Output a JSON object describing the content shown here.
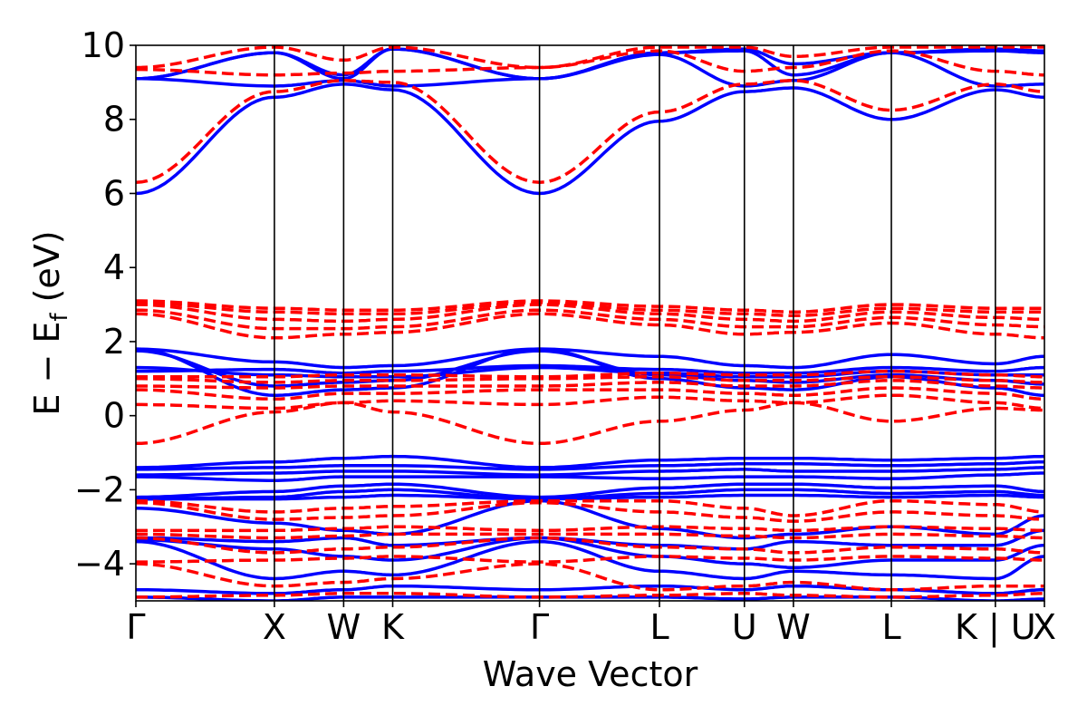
{
  "chart_data": {
    "type": "line",
    "title": "",
    "xlabel": "Wave Vector",
    "ylabel": "E − E_f (eV)",
    "ylabel_parts": {
      "main": "E − E",
      "sub": "f",
      "unit": " (eV)"
    },
    "ylim": [
      -5,
      10
    ],
    "yticks": [
      -4,
      -2,
      0,
      2,
      4,
      6,
      8,
      10
    ],
    "ytick_labels": [
      "−4",
      "−2",
      "0",
      "2",
      "4",
      "6",
      "8",
      "10"
    ],
    "grid": false,
    "colors": {
      "spin_up": "#0000ff",
      "spin_down": "#ff0000"
    },
    "kpoints": [
      {
        "label": "Γ",
        "pos": 0
      },
      {
        "label": "X",
        "pos": 1.0
      },
      {
        "label": "W",
        "pos": 1.5
      },
      {
        "label": "K",
        "pos": 1.854
      },
      {
        "label": "Γ",
        "pos": 2.914
      },
      {
        "label": "L",
        "pos": 3.78
      },
      {
        "label": "U",
        "pos": 4.393
      },
      {
        "label": "W",
        "pos": 4.747
      },
      {
        "label": "L",
        "pos": 5.454
      },
      {
        "label": "K | U",
        "pos": 6.205
      },
      {
        "label": "X",
        "pos": 6.559
      }
    ],
    "series": [
      {
        "name": "band-up-cb1",
        "style": "solid",
        "color": "#0000ff",
        "values": [
          6.0,
          8.6,
          8.95,
          8.8,
          6.0,
          7.95,
          8.75,
          8.85,
          8.0,
          8.8,
          8.6
        ]
      },
      {
        "name": "band-up-cb2",
        "style": "solid",
        "color": "#0000ff",
        "values": [
          9.1,
          8.9,
          9.05,
          8.9,
          9.1,
          9.75,
          8.9,
          9.05,
          9.8,
          8.9,
          8.95
        ]
      },
      {
        "name": "band-up-cb3",
        "style": "solid",
        "color": "#0000ff",
        "values": [
          9.1,
          9.8,
          9.1,
          9.9,
          9.1,
          9.8,
          9.85,
          9.2,
          9.8,
          9.85,
          9.8
        ]
      },
      {
        "name": "band-up-cb4",
        "style": "solid",
        "color": "#0000ff",
        "values": [
          9.1,
          9.8,
          9.2,
          9.9,
          9.1,
          9.8,
          9.9,
          9.5,
          9.8,
          9.9,
          9.85
        ]
      },
      {
        "name": "band-dn-cb1",
        "style": "dashed",
        "color": "#ff0000",
        "values": [
          6.3,
          8.75,
          9.05,
          9.0,
          6.3,
          8.2,
          8.95,
          9.05,
          8.25,
          8.95,
          8.75
        ]
      },
      {
        "name": "band-dn-cb2",
        "style": "dashed",
        "color": "#ff0000",
        "values": [
          9.35,
          9.2,
          9.25,
          9.3,
          9.4,
          9.85,
          9.3,
          9.4,
          9.85,
          9.3,
          9.2
        ]
      },
      {
        "name": "band-dn-cb3",
        "style": "dashed",
        "color": "#ff0000",
        "values": [
          9.4,
          9.95,
          9.6,
          9.95,
          9.4,
          9.95,
          9.95,
          9.7,
          9.95,
          9.95,
          9.95
        ]
      },
      {
        "name": "band-dn-d1",
        "style": "dashed",
        "color": "#ff0000",
        "values": [
          2.75,
          2.1,
          2.2,
          2.25,
          2.75,
          2.45,
          2.2,
          2.25,
          2.5,
          2.2,
          2.1
        ]
      },
      {
        "name": "band-dn-d2",
        "style": "dashed",
        "color": "#ff0000",
        "values": [
          2.85,
          2.35,
          2.35,
          2.4,
          2.85,
          2.6,
          2.4,
          2.4,
          2.65,
          2.45,
          2.4
        ]
      },
      {
        "name": "band-dn-d3",
        "style": "dashed",
        "color": "#ff0000",
        "values": [
          3.0,
          2.6,
          2.55,
          2.6,
          3.0,
          2.75,
          2.6,
          2.55,
          2.8,
          2.65,
          2.6
        ]
      },
      {
        "name": "band-dn-d4",
        "style": "dashed",
        "color": "#ff0000",
        "values": [
          3.05,
          2.8,
          2.75,
          2.75,
          3.05,
          2.85,
          2.75,
          2.7,
          2.9,
          2.8,
          2.8
        ]
      },
      {
        "name": "band-dn-d5",
        "style": "dashed",
        "color": "#ff0000",
        "values": [
          3.1,
          2.9,
          2.85,
          2.85,
          3.1,
          2.95,
          2.85,
          2.8,
          3.0,
          2.9,
          2.9
        ]
      },
      {
        "name": "band-up-d1",
        "style": "solid",
        "color": "#0000ff",
        "values": [
          1.8,
          0.55,
          0.7,
          0.75,
          1.8,
          1.0,
          0.75,
          0.7,
          1.05,
          0.75,
          0.55
        ]
      },
      {
        "name": "band-up-d2",
        "style": "solid",
        "color": "#0000ff",
        "values": [
          1.75,
          0.8,
          0.9,
          0.95,
          1.75,
          1.1,
          0.95,
          0.9,
          1.1,
          0.95,
          0.85
        ]
      },
      {
        "name": "band-up-d3",
        "style": "solid",
        "color": "#0000ff",
        "values": [
          1.3,
          1.1,
          1.05,
          1.05,
          1.3,
          1.15,
          1.05,
          1.05,
          1.2,
          1.1,
          1.1
        ]
      },
      {
        "name": "band-up-d4",
        "style": "solid",
        "color": "#0000ff",
        "values": [
          1.2,
          1.25,
          1.15,
          1.2,
          1.35,
          1.25,
          1.15,
          1.15,
          1.3,
          1.2,
          1.3
        ]
      },
      {
        "name": "band-up-d5",
        "style": "solid",
        "color": "#0000ff",
        "values": [
          1.8,
          1.45,
          1.3,
          1.35,
          1.8,
          1.6,
          1.35,
          1.3,
          1.65,
          1.4,
          1.6
        ]
      },
      {
        "name": "band-dn-e1",
        "style": "dashed",
        "color": "#ff0000",
        "values": [
          0.3,
          0.2,
          0.35,
          0.4,
          0.3,
          0.5,
          0.4,
          0.35,
          0.55,
          0.35,
          0.2
        ]
      },
      {
        "name": "band-dn-e2",
        "style": "dashed",
        "color": "#ff0000",
        "values": [
          0.7,
          0.45,
          0.6,
          0.6,
          0.7,
          0.7,
          0.6,
          0.55,
          0.75,
          0.6,
          0.45
        ]
      },
      {
        "name": "band-dn-e3",
        "style": "dashed",
        "color": "#ff0000",
        "values": [
          0.8,
          0.75,
          0.8,
          0.8,
          0.8,
          0.9,
          0.8,
          0.8,
          0.95,
          0.8,
          0.75
        ]
      },
      {
        "name": "band-dn-e4",
        "style": "dashed",
        "color": "#ff0000",
        "values": [
          1.0,
          0.9,
          0.95,
          0.95,
          1.0,
          1.05,
          0.95,
          0.95,
          1.05,
          0.95,
          0.9
        ]
      },
      {
        "name": "band-dn-e5",
        "style": "dashed",
        "color": "#ff0000",
        "values": [
          1.05,
          1.05,
          1.1,
          1.1,
          1.05,
          1.15,
          1.1,
          1.1,
          1.2,
          1.1,
          1.05
        ]
      },
      {
        "name": "band-dn-e6",
        "style": "dashed",
        "color": "#ff0000",
        "values": [
          -0.75,
          0.1,
          0.35,
          0.1,
          -0.75,
          -0.15,
          0.15,
          0.35,
          -0.15,
          0.2,
          0.15
        ]
      },
      {
        "name": "band-up-v1",
        "style": "solid",
        "color": "#0000ff",
        "values": [
          -1.4,
          -1.25,
          -1.15,
          -1.1,
          -1.4,
          -1.2,
          -1.15,
          -1.15,
          -1.2,
          -1.15,
          -1.1
        ]
      },
      {
        "name": "band-up-v2",
        "style": "solid",
        "color": "#0000ff",
        "values": [
          -1.45,
          -1.4,
          -1.35,
          -1.35,
          -1.45,
          -1.35,
          -1.3,
          -1.3,
          -1.35,
          -1.3,
          -1.25
        ]
      },
      {
        "name": "band-up-v3",
        "style": "solid",
        "color": "#0000ff",
        "values": [
          -1.6,
          -1.55,
          -1.5,
          -1.5,
          -1.6,
          -1.5,
          -1.45,
          -1.5,
          -1.5,
          -1.45,
          -1.4
        ]
      },
      {
        "name": "band-up-v4",
        "style": "solid",
        "color": "#0000ff",
        "values": [
          -1.65,
          -1.75,
          -1.65,
          -1.65,
          -1.65,
          -1.7,
          -1.65,
          -1.65,
          -1.7,
          -1.6,
          -1.55
        ]
      },
      {
        "name": "band-up-v5",
        "style": "solid",
        "color": "#0000ff",
        "values": [
          -2.2,
          -2.05,
          -1.9,
          -1.85,
          -2.2,
          -1.95,
          -1.85,
          -1.85,
          -1.95,
          -1.9,
          -2.05
        ]
      },
      {
        "name": "band-up-v6",
        "style": "solid",
        "color": "#0000ff",
        "values": [
          -2.25,
          -2.2,
          -2.05,
          -2.0,
          -2.25,
          -2.1,
          -2.0,
          -2.0,
          -2.1,
          -2.05,
          -2.15
        ]
      },
      {
        "name": "band-up-v7",
        "style": "solid",
        "color": "#0000ff",
        "values": [
          -2.25,
          -2.25,
          -2.2,
          -2.15,
          -2.25,
          -2.2,
          -2.15,
          -2.15,
          -2.2,
          -2.15,
          -2.2
        ]
      },
      {
        "name": "band-up-v8",
        "style": "solid",
        "color": "#0000ff",
        "values": [
          -2.5,
          -2.9,
          -3.1,
          -3.2,
          -2.3,
          -3.05,
          -3.3,
          -3.2,
          -3.0,
          -3.2,
          -2.7
        ]
      },
      {
        "name": "band-up-v9",
        "style": "solid",
        "color": "#0000ff",
        "values": [
          -3.3,
          -3.4,
          -3.3,
          -3.5,
          -3.3,
          -3.5,
          -3.6,
          -3.4,
          -3.5,
          -3.5,
          -3.1
        ]
      },
      {
        "name": "band-up-v10",
        "style": "solid",
        "color": "#0000ff",
        "values": [
          -3.35,
          -3.6,
          -3.8,
          -3.9,
          -3.3,
          -3.8,
          -4.0,
          -4.1,
          -3.9,
          -3.9,
          -3.5
        ]
      },
      {
        "name": "band-up-v11",
        "style": "solid",
        "color": "#0000ff",
        "values": [
          -3.4,
          -4.4,
          -4.2,
          -4.3,
          -3.4,
          -4.2,
          -4.4,
          -4.2,
          -4.3,
          -4.4,
          -3.8
        ]
      },
      {
        "name": "band-up-v12",
        "style": "solid",
        "color": "#0000ff",
        "values": [
          -4.7,
          -4.8,
          -4.7,
          -4.6,
          -4.7,
          -4.6,
          -4.7,
          -4.6,
          -4.7,
          -4.8,
          -4.7
        ]
      },
      {
        "name": "band-up-v13",
        "style": "solid",
        "color": "#0000ff",
        "values": [
          -4.9,
          -5.0,
          -4.9,
          -4.9,
          -4.9,
          -4.9,
          -4.95,
          -4.9,
          -4.9,
          -5.0,
          -4.95
        ]
      },
      {
        "name": "band-dn-v1",
        "style": "dashed",
        "color": "#ff0000",
        "values": [
          -2.3,
          -2.6,
          -2.5,
          -2.45,
          -2.3,
          -2.3,
          -2.5,
          -2.7,
          -2.3,
          -2.4,
          -2.6
        ]
      },
      {
        "name": "band-dn-v2",
        "style": "dashed",
        "color": "#ff0000",
        "values": [
          -2.35,
          -2.8,
          -2.75,
          -2.7,
          -2.35,
          -2.6,
          -2.75,
          -2.85,
          -2.6,
          -2.7,
          -2.8
        ]
      },
      {
        "name": "band-dn-v3",
        "style": "dashed",
        "color": "#ff0000",
        "values": [
          -3.1,
          -3.1,
          -3.05,
          -3.0,
          -3.1,
          -3.0,
          -3.05,
          -3.1,
          -3.0,
          -3.05,
          -3.1
        ]
      },
      {
        "name": "band-dn-v4",
        "style": "dashed",
        "color": "#ff0000",
        "values": [
          -3.2,
          -3.3,
          -3.25,
          -3.2,
          -3.2,
          -3.2,
          -3.25,
          -3.3,
          -3.2,
          -3.25,
          -3.3
        ]
      },
      {
        "name": "band-dn-v5",
        "style": "dashed",
        "color": "#ff0000",
        "values": [
          -3.3,
          -3.7,
          -3.6,
          -3.55,
          -3.3,
          -3.55,
          -3.6,
          -3.7,
          -3.55,
          -3.6,
          -3.7
        ]
      },
      {
        "name": "band-dn-v6",
        "style": "dashed",
        "color": "#ff0000",
        "values": [
          -3.95,
          -3.9,
          -3.85,
          -3.8,
          -3.95,
          -3.8,
          -3.85,
          -3.9,
          -3.8,
          -3.85,
          -3.9
        ]
      },
      {
        "name": "band-dn-v7",
        "style": "dashed",
        "color": "#ff0000",
        "values": [
          -4.0,
          -4.6,
          -4.5,
          -4.4,
          -4.0,
          -4.7,
          -4.6,
          -4.5,
          -4.7,
          -4.6,
          -4.6
        ]
      },
      {
        "name": "band-dn-v8",
        "style": "dashed",
        "color": "#ff0000",
        "values": [
          -4.9,
          -4.85,
          -4.8,
          -4.8,
          -4.9,
          -4.85,
          -4.8,
          -4.85,
          -4.9,
          -4.85,
          -4.8
        ]
      }
    ]
  }
}
